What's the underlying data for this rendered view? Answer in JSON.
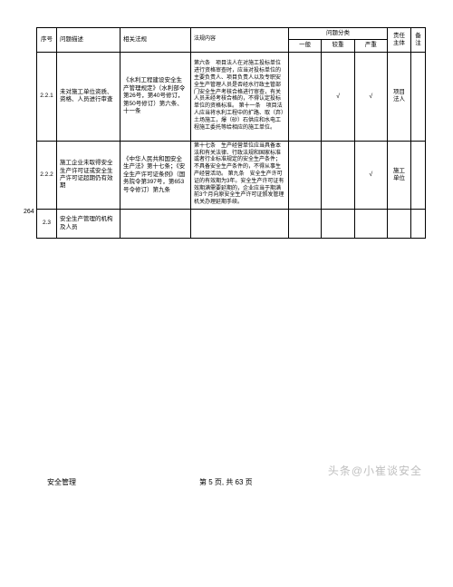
{
  "header": {
    "seq": "序号",
    "desc": "问题描述",
    "law": "相关法规",
    "content": "法规内容",
    "classification": "问题分类",
    "c1": "一般",
    "c2": "较重",
    "c3": "严重",
    "resp": "责任主体",
    "note": "备注"
  },
  "rows": [
    {
      "seq": "2.2.1",
      "desc": "未对施工单位资质、资格、人员进行审查",
      "law": "《水利工程建设安全生产管理规定》（水利部令第26号，第40号修订，第50号修订）第六条、十一条",
      "content": "第六条　项目法人在对施工投标单位进行资格审查时，应当对投标单位的主要负责人、项目负责人以及专职安全生产管理人员是否经水行政主管部门安全生产考核合格进行审查，有关人员未经考核合格的，不得认定投标单位的资格标准。\n第十一条　项目法人应当将水利工程中的扩路、取（弃）土场施工，爆（砂）石供应和水电工程施工委托等给相应的施工单位。",
      "c1": "",
      "c2": "√",
      "c3": "√",
      "resp": "项目法人"
    },
    {
      "seq": "2.2.2",
      "desc": "施工企业未取得安全生产许可证或安全生产许可证超期仍有效期",
      "law": "《中华人民共和国安全生产法》第十七条；《安全生产许可证条例》（国务院令第397号，第653号令修订）第九条",
      "content": "第十七条　生产经营单位应当具备本法和有关法律、行政法规和国家标准或者行业标准规定的安全生产条件；不具备安全生产条件的，不得从事生产经营活动。\n第九条　安全生产许可证的有效期为3年。安全生产许可证有效期满需要延期的，企业应当于期满前3个月向原安全生产许可证颁发管理机关办理延期手续。",
      "c1": "",
      "c2": "",
      "c3": "√",
      "resp": "施工单位"
    },
    {
      "seq": "2.3",
      "desc": "安全生产管理的机构及人员",
      "law": "",
      "content": "",
      "c1": "",
      "c2": "",
      "c3": "",
      "resp": ""
    }
  ],
  "footer": {
    "left": "安全管理",
    "center": "第 5 页, 共 63 页"
  },
  "watermark": "头条@小崔谈安全",
  "side_num": "264"
}
